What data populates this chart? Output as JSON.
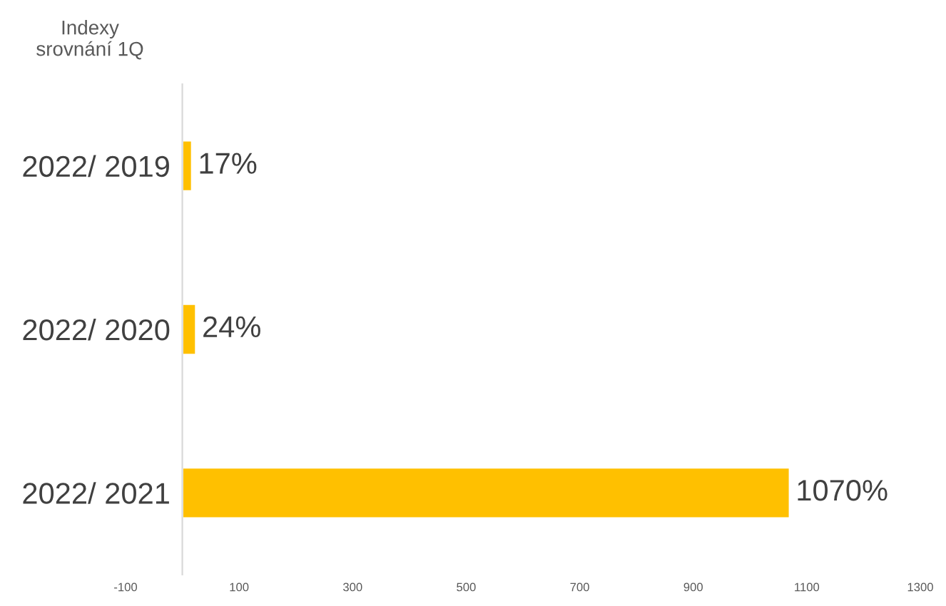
{
  "chart_data": {
    "type": "bar",
    "orientation": "horizontal",
    "title": "Indexy\nsrovnání 1Q",
    "categories": [
      "2022/ 2019",
      "2022/ 2020",
      "2022/ 2021"
    ],
    "values": [
      17,
      24,
      1070
    ],
    "value_labels": [
      "17%",
      "24%",
      "1070%"
    ],
    "color": "#ffc000",
    "xlim": [
      -100,
      1300
    ],
    "xticks": [
      -100,
      100,
      300,
      500,
      700,
      900,
      1100,
      1300
    ],
    "grid": false,
    "legend": false
  }
}
